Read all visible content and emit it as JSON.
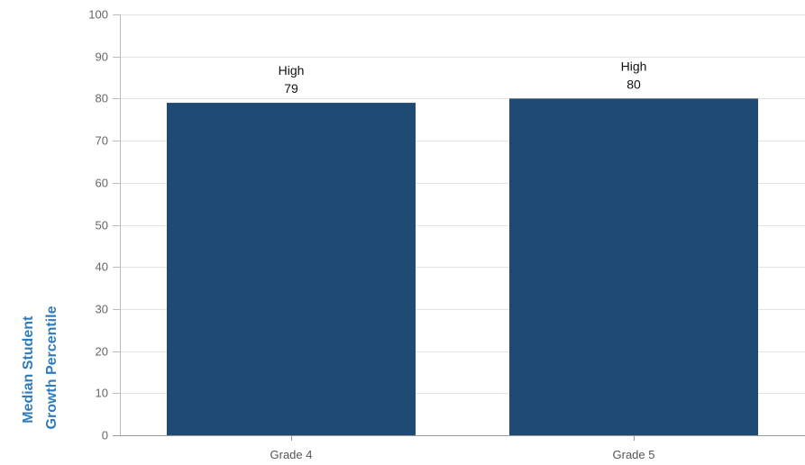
{
  "chart_data": {
    "type": "bar",
    "categories": [
      "Grade 4",
      "Grade 5"
    ],
    "values": [
      79,
      80
    ],
    "bar_labels": [
      "High",
      "High"
    ],
    "ylabel_lines": [
      "Median Student",
      "Growth Percentile"
    ],
    "xlabel": "",
    "title": "",
    "ylim": [
      0,
      100
    ],
    "yticks": [
      0,
      10,
      20,
      30,
      40,
      50,
      60,
      70,
      80,
      90,
      100
    ],
    "grid": true,
    "legend": "none"
  },
  "colors": {
    "bar": "#1f4a74",
    "ylabel": "#2e7bbf",
    "grid": "#e3e3e3",
    "axis": "#bbbbbb"
  }
}
